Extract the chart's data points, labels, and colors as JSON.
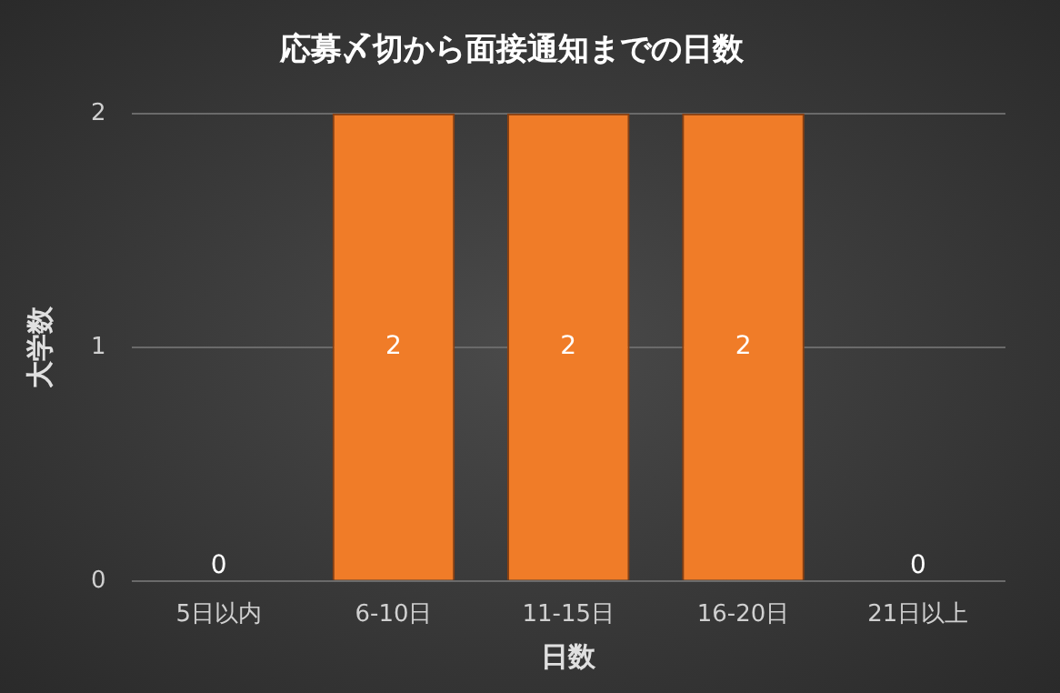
{
  "chart_data": {
    "type": "bar",
    "title": "応募〆切から面接通知までの日数",
    "xlabel": "日数",
    "ylabel": "大学数",
    "categories": [
      "5日以内",
      "6-10日",
      "11-15日",
      "16-20日",
      "21日以上"
    ],
    "values": [
      0,
      2,
      2,
      2,
      0
    ],
    "color": "#f07c28",
    "ylim": [
      0,
      2
    ],
    "yticks": [
      0,
      1,
      2
    ],
    "grid": "y",
    "data_labels": true,
    "legend": false
  }
}
